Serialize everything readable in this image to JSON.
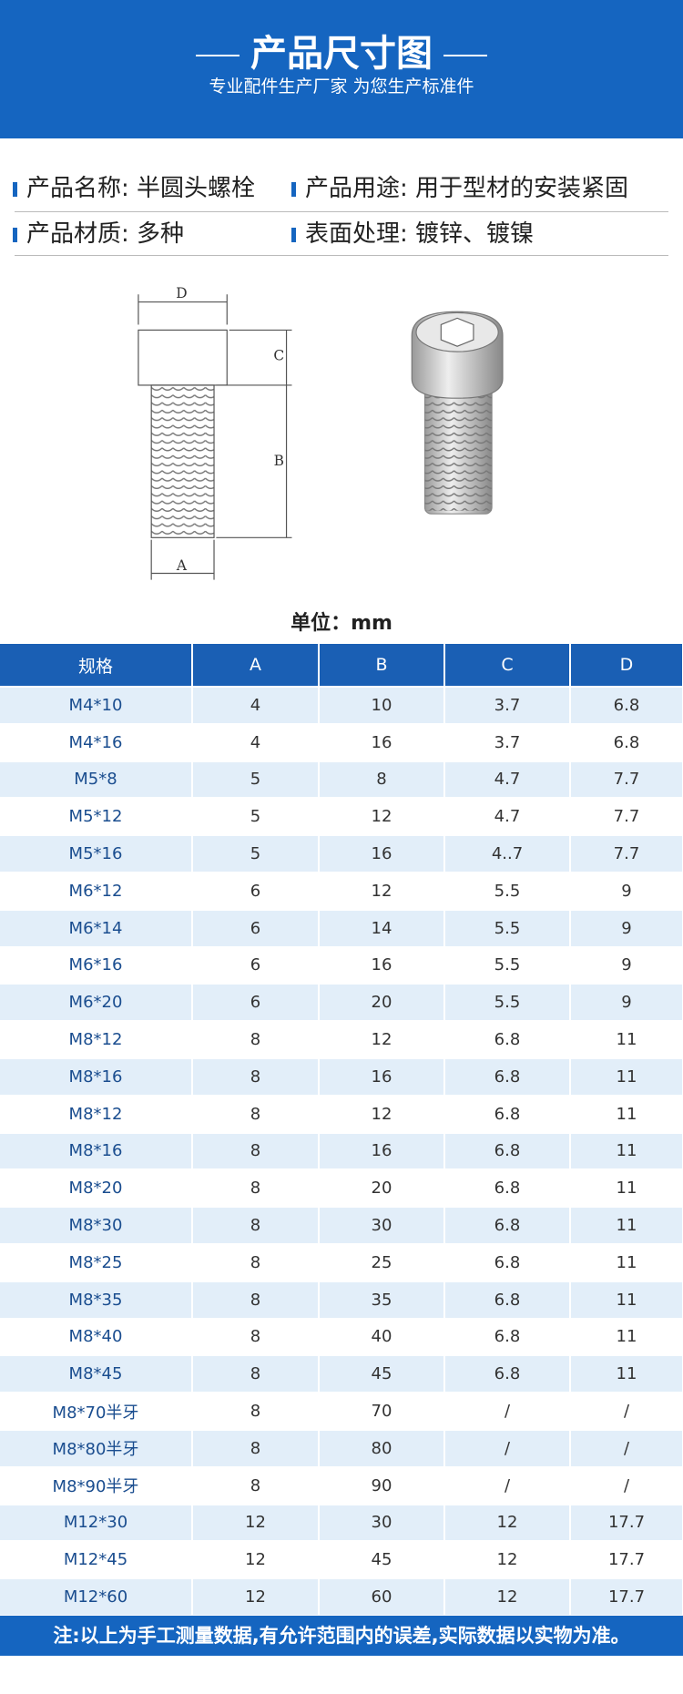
{
  "header": {
    "title": "产品尺寸图",
    "subtitle": "专业配件生产厂家 为您生产标准件"
  },
  "info": [
    [
      "产品名称: 半圆头螺栓",
      "产品用途: 用于型材的安装紧固"
    ],
    [
      "产品材质: 多种",
      "表面处理: 镀锌、镀镍"
    ]
  ],
  "drawing": {
    "labels": [
      "D",
      "C",
      "B",
      "A"
    ]
  },
  "unit": "单位：mm",
  "table": {
    "columns": [
      "规格",
      "A",
      "B",
      "C",
      "D"
    ],
    "rows": [
      [
        "M4*10",
        "4",
        "10",
        "3.7",
        "6.8"
      ],
      [
        "M4*16",
        "4",
        "16",
        "3.7",
        "6.8"
      ],
      [
        "M5*8",
        "5",
        "8",
        "4.7",
        "7.7"
      ],
      [
        "M5*12",
        "5",
        "12",
        "4.7",
        "7.7"
      ],
      [
        "M5*16",
        "5",
        "16",
        "4..7",
        "7.7"
      ],
      [
        "M6*12",
        "6",
        "12",
        "5.5",
        "9"
      ],
      [
        "M6*14",
        "6",
        "14",
        "5.5",
        "9"
      ],
      [
        "M6*16",
        "6",
        "16",
        "5.5",
        "9"
      ],
      [
        "M6*20",
        "6",
        "20",
        "5.5",
        "9"
      ],
      [
        "M8*12",
        "8",
        "12",
        "6.8",
        "11"
      ],
      [
        "M8*16",
        "8",
        "16",
        "6.8",
        "11"
      ],
      [
        "M8*12",
        "8",
        "12",
        "6.8",
        "11"
      ],
      [
        "M8*16",
        "8",
        "16",
        "6.8",
        "11"
      ],
      [
        "M8*20",
        "8",
        "20",
        "6.8",
        "11"
      ],
      [
        "M8*30",
        "8",
        "30",
        "6.8",
        "11"
      ],
      [
        "M8*25",
        "8",
        "25",
        "6.8",
        "11"
      ],
      [
        "M8*35",
        "8",
        "35",
        "6.8",
        "11"
      ],
      [
        "M8*40",
        "8",
        "40",
        "6.8",
        "11"
      ],
      [
        "M8*45",
        "8",
        "45",
        "6.8",
        "11"
      ],
      [
        "M8*70半牙",
        "8",
        "70",
        "/",
        "/"
      ],
      [
        "M8*80半牙",
        "8",
        "80",
        "/",
        "/"
      ],
      [
        "M8*90半牙",
        "8",
        "90",
        "/",
        "/"
      ],
      [
        "M12*30",
        "12",
        "30",
        "12",
        "17.7"
      ],
      [
        "M12*45",
        "12",
        "45",
        "12",
        "17.7"
      ],
      [
        "M12*60",
        "12",
        "60",
        "12",
        "17.7"
      ]
    ]
  },
  "note": "注:以上为手工测量数据,有允许范围内的误差,实际数据以实物为准。"
}
